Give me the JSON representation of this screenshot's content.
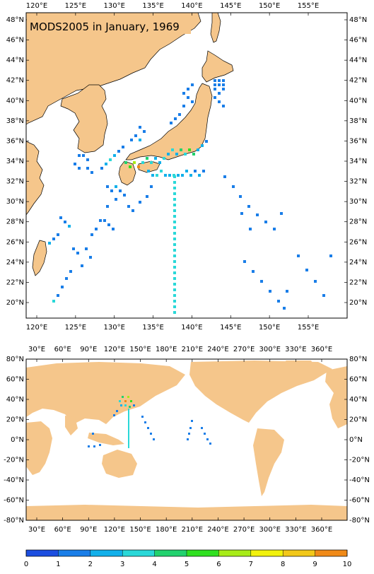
{
  "top_map": {
    "title": "MODS2005 in January, 1969",
    "x_ticks": [
      "120°E",
      "125°E",
      "130°E",
      "135°E",
      "140°E",
      "145°E",
      "150°E",
      "155°E"
    ],
    "y_ticks": [
      "48°N",
      "46°N",
      "44°N",
      "42°N",
      "40°N",
      "38°N",
      "36°N",
      "34°N",
      "32°N",
      "30°N",
      "28°N",
      "26°N",
      "24°N",
      "22°N",
      "20°N"
    ]
  },
  "bottom_map": {
    "x_ticks": [
      "30°E",
      "60°E",
      "90°E",
      "120°E",
      "150°E",
      "180°E",
      "210°E",
      "240°E",
      "270°E",
      "300°E",
      "330°E",
      "360°E"
    ],
    "y_ticks": [
      "80°N",
      "60°N",
      "40°N",
      "20°N",
      "0°N",
      "-20°N",
      "-40°N",
      "-60°N",
      "-80°N"
    ]
  },
  "colorbar": {
    "labels": [
      "0",
      "1",
      "2",
      "3",
      "4",
      "5",
      "6",
      "7",
      "8",
      "9",
      "10"
    ],
    "colors": [
      "#1c4ee0",
      "#1a7ee8",
      "#12b0ea",
      "#2ad8d8",
      "#22d26e",
      "#30e020",
      "#a8ec18",
      "#f2f20c",
      "#f2c81a",
      "#f08a18",
      "#e84a16"
    ]
  },
  "land_color": "#f5c68b",
  "ocean_color": "#ffffff"
}
